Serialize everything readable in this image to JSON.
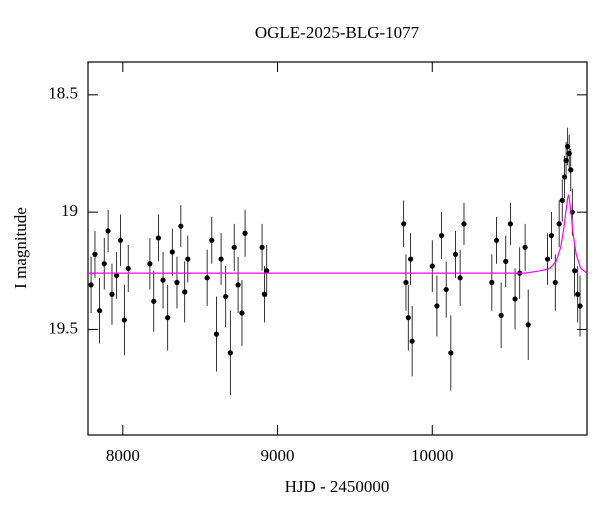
{
  "chart_data": {
    "type": "scatter",
    "title": "OGLE-2025-BLG-1077",
    "xlabel": "HJD - 2450000",
    "ylabel": "I magnitude",
    "xlim": [
      7775,
      11000
    ],
    "ylim": [
      18.36,
      19.95
    ],
    "y_inverted": true,
    "xticks": [
      8000,
      9000,
      10000
    ],
    "yticks": [
      18.5,
      19,
      19.5
    ],
    "series": [
      {
        "style": "points",
        "color": "#000000",
        "x": [
          7795,
          7820,
          7850,
          7880,
          7905,
          7930,
          7960,
          7985,
          8010,
          8035,
          8175,
          8200,
          8230,
          8260,
          8290,
          8320,
          8350,
          8375,
          8400,
          8420,
          8545,
          8575,
          8605,
          8635,
          8665,
          8695,
          8720,
          8745,
          8770,
          8790,
          8900,
          8915,
          8930,
          9815,
          9830,
          9845,
          9860,
          9870,
          10000,
          10030,
          10060,
          10090,
          10120,
          10150,
          10180,
          10205,
          10385,
          10415,
          10445,
          10475,
          10505,
          10535,
          10565,
          10600,
          10620,
          10745,
          10770,
          10795,
          10820,
          10840,
          10855,
          10865,
          10875,
          10885,
          10895,
          10905,
          10920,
          10940,
          10955
        ],
        "values": [
          19.31,
          19.18,
          19.42,
          19.22,
          19.08,
          19.35,
          19.27,
          19.12,
          19.46,
          19.24,
          19.22,
          19.38,
          19.11,
          19.29,
          19.45,
          19.17,
          19.3,
          19.06,
          19.34,
          19.2,
          19.28,
          19.12,
          19.52,
          19.2,
          19.36,
          19.6,
          19.15,
          19.31,
          19.43,
          19.09,
          19.15,
          19.35,
          19.25,
          19.05,
          19.3,
          19.45,
          19.2,
          19.55,
          19.23,
          19.4,
          19.1,
          19.33,
          19.6,
          19.18,
          19.28,
          19.05,
          19.3,
          19.12,
          19.44,
          19.21,
          19.05,
          19.37,
          19.26,
          19.15,
          19.48,
          19.2,
          19.1,
          19.3,
          19.05,
          18.95,
          18.85,
          18.78,
          18.72,
          18.75,
          18.82,
          19.0,
          19.25,
          19.35,
          19.4
        ],
        "errors": [
          0.12,
          0.1,
          0.14,
          0.11,
          0.09,
          0.13,
          0.1,
          0.11,
          0.15,
          0.1,
          0.11,
          0.13,
          0.1,
          0.12,
          0.14,
          0.1,
          0.11,
          0.09,
          0.13,
          0.1,
          0.12,
          0.1,
          0.16,
          0.11,
          0.13,
          0.18,
          0.1,
          0.12,
          0.14,
          0.1,
          0.1,
          0.12,
          0.11,
          0.1,
          0.12,
          0.14,
          0.11,
          0.15,
          0.11,
          0.13,
          0.1,
          0.12,
          0.16,
          0.1,
          0.12,
          0.09,
          0.12,
          0.1,
          0.14,
          0.11,
          0.09,
          0.13,
          0.11,
          0.1,
          0.15,
          0.11,
          0.1,
          0.12,
          0.1,
          0.09,
          0.09,
          0.08,
          0.08,
          0.08,
          0.09,
          0.1,
          0.11,
          0.12,
          0.13
        ]
      },
      {
        "style": "line",
        "color": "#ff00ff",
        "x": [
          7775,
          10600,
          10700,
          10760,
          10800,
          10830,
          10850,
          10865,
          10875,
          10880,
          10885,
          10895,
          10910,
          10930,
          10960,
          11000
        ],
        "values": [
          19.26,
          19.26,
          19.25,
          19.24,
          19.21,
          19.15,
          19.07,
          18.99,
          18.94,
          18.93,
          18.94,
          18.99,
          19.09,
          19.18,
          19.24,
          19.26
        ]
      }
    ]
  }
}
